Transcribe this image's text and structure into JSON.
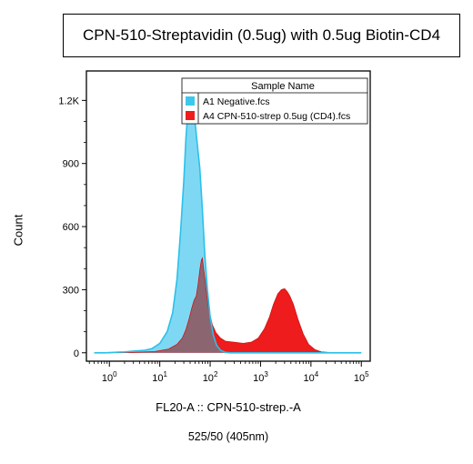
{
  "chart_data": {
    "type": "area",
    "title": "CPN-510-Streptavidin (0.5ug) with 0.5ug Biotin-CD4",
    "xlabel": "FL20-A :: CPN-510-strep.-A",
    "subtitle": "525/50 (405nm)",
    "ylabel": "Count",
    "xscale": "log",
    "xlim": [
      0.35,
      150000
    ],
    "ylim": [
      -40,
      1340
    ],
    "x_ticks": [
      {
        "base": "10",
        "exp": "0",
        "value": 1
      },
      {
        "base": "10",
        "exp": "1",
        "value": 10
      },
      {
        "base": "10",
        "exp": "2",
        "value": 100
      },
      {
        "base": "10",
        "exp": "3",
        "value": 1000
      },
      {
        "base": "10",
        "exp": "4",
        "value": 10000
      },
      {
        "base": "10",
        "exp": "5",
        "value": 100000
      }
    ],
    "y_ticks": [
      {
        "label": "0",
        "value": 0
      },
      {
        "label": "300",
        "value": 300
      },
      {
        "label": "600",
        "value": 600
      },
      {
        "label": "900",
        "value": 900
      },
      {
        "label": "1.2K",
        "value": 1200
      }
    ],
    "legend": {
      "header": "Sample Name",
      "placement": "top-right",
      "entries": [
        {
          "label": "A1 Negative.fcs",
          "color": "#3cc8ee"
        },
        {
          "label": "A4 CPN-510-strep 0.5ug (CD4).fcs",
          "color": "#ee1c1c"
        }
      ]
    },
    "overlap_color": "#8b6670",
    "series": [
      {
        "name": "A1 Negative.fcs",
        "fill": "#7fd8f3",
        "stroke": "#2cc0ea",
        "points": [
          [
            0.5,
            0
          ],
          [
            0.8,
            0
          ],
          [
            1,
            1
          ],
          [
            2,
            4
          ],
          [
            3,
            8
          ],
          [
            5,
            12
          ],
          [
            7,
            20
          ],
          [
            10,
            45
          ],
          [
            14,
            100
          ],
          [
            18,
            190
          ],
          [
            22,
            350
          ],
          [
            26,
            580
          ],
          [
            30,
            820
          ],
          [
            33,
            1020
          ],
          [
            36,
            1150
          ],
          [
            39,
            1225
          ],
          [
            41,
            1270
          ],
          [
            43,
            1240
          ],
          [
            46,
            1190
          ],
          [
            50,
            1100
          ],
          [
            55,
            1000
          ],
          [
            62,
            880
          ],
          [
            70,
            680
          ],
          [
            78,
            470
          ],
          [
            88,
            300
          ],
          [
            100,
            170
          ],
          [
            115,
            85
          ],
          [
            135,
            35
          ],
          [
            160,
            12
          ],
          [
            200,
            2
          ],
          [
            250,
            0
          ],
          [
            500,
            0
          ],
          [
            1000,
            0
          ],
          [
            5000,
            0
          ],
          [
            20000,
            0
          ],
          [
            100000,
            0
          ]
        ]
      },
      {
        "name": "A4 CPN-510-strep 0.5ug (CD4).fcs",
        "fill": "#ee1c1c",
        "stroke": "#cc1616",
        "points": [
          [
            0.5,
            0
          ],
          [
            1,
            0
          ],
          [
            3,
            2
          ],
          [
            8,
            6
          ],
          [
            15,
            18
          ],
          [
            22,
            40
          ],
          [
            28,
            70
          ],
          [
            33,
            110
          ],
          [
            38,
            160
          ],
          [
            43,
            210
          ],
          [
            48,
            250
          ],
          [
            53,
            270
          ],
          [
            58,
            330
          ],
          [
            63,
            400
          ],
          [
            67,
            440
          ],
          [
            70,
            450
          ],
          [
            74,
            400
          ],
          [
            80,
            340
          ],
          [
            86,
            270
          ],
          [
            95,
            200
          ],
          [
            110,
            135
          ],
          [
            130,
            95
          ],
          [
            160,
            70
          ],
          [
            200,
            55
          ],
          [
            300,
            50
          ],
          [
            450,
            45
          ],
          [
            650,
            50
          ],
          [
            900,
            70
          ],
          [
            1200,
            115
          ],
          [
            1500,
            170
          ],
          [
            1800,
            230
          ],
          [
            2200,
            280
          ],
          [
            2600,
            300
          ],
          [
            3000,
            305
          ],
          [
            3400,
            290
          ],
          [
            3800,
            270
          ],
          [
            4500,
            230
          ],
          [
            5500,
            160
          ],
          [
            7000,
            90
          ],
          [
            9000,
            40
          ],
          [
            12000,
            15
          ],
          [
            16000,
            4
          ],
          [
            25000,
            1
          ],
          [
            60000,
            0
          ],
          [
            100000,
            0
          ]
        ]
      }
    ]
  }
}
